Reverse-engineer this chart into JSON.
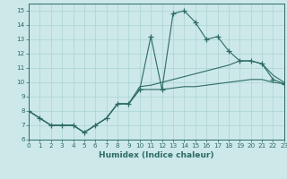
{
  "title": "",
  "xlabel": "Humidex (Indice chaleur)",
  "ylabel": "",
  "bg_color": "#cce8e8",
  "line_color": "#2d6b65",
  "grid_color": "#aad4d0",
  "x_data": [
    0,
    1,
    2,
    3,
    4,
    5,
    6,
    7,
    8,
    9,
    10,
    11,
    12,
    13,
    14,
    15,
    16,
    17,
    18,
    19,
    20,
    21,
    22,
    23
  ],
  "y_main": [
    8.0,
    7.5,
    7.0,
    7.0,
    7.0,
    6.5,
    7.0,
    7.5,
    8.5,
    8.5,
    9.5,
    13.2,
    9.5,
    14.8,
    15.0,
    14.2,
    13.0,
    13.2,
    12.2,
    11.5,
    11.5,
    11.3,
    10.2,
    9.9
  ],
  "y_line1": [
    8.0,
    7.5,
    7.0,
    7.0,
    7.0,
    6.5,
    7.0,
    7.5,
    8.5,
    8.5,
    9.7,
    9.8,
    10.0,
    10.2,
    10.4,
    10.6,
    10.8,
    11.0,
    11.2,
    11.5,
    11.5,
    11.3,
    10.5,
    10.0
  ],
  "y_line2": [
    8.0,
    7.5,
    7.0,
    7.0,
    7.0,
    6.5,
    7.0,
    7.5,
    8.5,
    8.5,
    9.5,
    9.5,
    9.5,
    9.6,
    9.7,
    9.7,
    9.8,
    9.9,
    10.0,
    10.1,
    10.2,
    10.2,
    10.0,
    9.9
  ],
  "xlim": [
    0,
    23
  ],
  "ylim": [
    6,
    15.5
  ],
  "yticks": [
    6,
    7,
    8,
    9,
    10,
    11,
    12,
    13,
    14,
    15
  ],
  "xticks": [
    0,
    1,
    2,
    3,
    4,
    5,
    6,
    7,
    8,
    9,
    10,
    11,
    12,
    13,
    14,
    15,
    16,
    17,
    18,
    19,
    20,
    21,
    22,
    23
  ],
  "xlabel_fontsize": 6.5,
  "tick_fontsize": 5.2
}
